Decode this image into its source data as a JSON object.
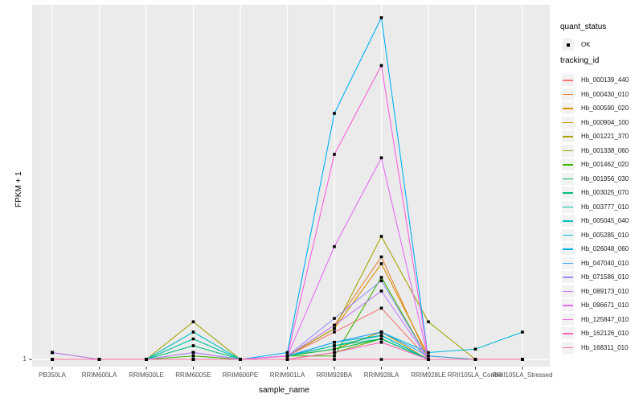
{
  "figure": {
    "background": "#ffffff",
    "panel_bg": "#ebebeb",
    "grid_color": "#ffffff",
    "axis_text_color": "#4d4d4d",
    "tick_color": "#333333"
  },
  "axes": {
    "x_title": "sample_name",
    "y_title": "FPKM + 1",
    "y_tick_label": "1"
  },
  "legend": {
    "quant_title": "quant_status",
    "quant_item_label": "OK",
    "quant_marker": "black-square-point",
    "tracking_title": "tracking_id"
  },
  "chart_data": {
    "type": "line",
    "title": "",
    "xlabel": "sample_name",
    "ylabel": "FPKM + 1",
    "y_scale": "log",
    "y_axis_labeled_ticks": [
      "1"
    ],
    "grid": "vertical white gridlines per sample + horizontal gridline at y=1 on grey panel",
    "legend_position": "right",
    "marker": {
      "shape": "square",
      "color": "#000000",
      "meaning": "quant_status = OK"
    },
    "x_categories": [
      "PB350LA",
      "RRIM600LA",
      "RRIM600LE",
      "RRIM600SE",
      "RRIM600PE",
      "RRIM901LA",
      "RRIM928BA",
      "RRIM928LA",
      "RRIM928LE",
      "RRII105LA_Control",
      "RRII105LA_Stressed"
    ],
    "value_note": "heights are relative panel heights 0-100 above the FPKM+1 = 1 baseline (only the '1' tick is labeled on the log y-axis); 100 = tallest peak (Hb_026048_060 at RRIM928LA)",
    "series": [
      {
        "name": "Hb_000139_440",
        "color": "#F8766D",
        "heights": [
          0,
          0,
          0,
          0,
          0,
          1,
          8,
          15,
          0,
          0,
          0
        ]
      },
      {
        "name": "Hb_000430_010",
        "color": "#EA8331",
        "heights": [
          0,
          0,
          0,
          0,
          0,
          1,
          10,
          30,
          0,
          0,
          0
        ]
      },
      {
        "name": "Hb_000590_020",
        "color": "#D89000",
        "heights": [
          0,
          0,
          0,
          0,
          0,
          1,
          9,
          28,
          1,
          0,
          0
        ]
      },
      {
        "name": "Hb_000904_100",
        "color": "#C09B00",
        "heights": [
          2,
          0,
          0,
          0,
          0,
          1,
          3,
          8,
          0,
          0,
          0
        ]
      },
      {
        "name": "Hb_001221_370",
        "color": "#A3A500",
        "heights": [
          2,
          0,
          0,
          11,
          0,
          1,
          9,
          36,
          11,
          0,
          0
        ]
      },
      {
        "name": "Hb_001338_060",
        "color": "#7CAE00",
        "heights": [
          0,
          0,
          0,
          0,
          0,
          0,
          2,
          6,
          0,
          0,
          0
        ]
      },
      {
        "name": "Hb_001462_020",
        "color": "#39B600",
        "heights": [
          0,
          0,
          0,
          1,
          0,
          1,
          1,
          24,
          0,
          0,
          0
        ]
      },
      {
        "name": "Hb_001956_030",
        "color": "#00BB4E",
        "heights": [
          0,
          0,
          0,
          2,
          0,
          1,
          3,
          6,
          0,
          0,
          0
        ]
      },
      {
        "name": "Hb_003025_070",
        "color": "#00BF7D",
        "heights": [
          0,
          0,
          0,
          4,
          0,
          1,
          4,
          6,
          0,
          0,
          0
        ]
      },
      {
        "name": "Hb_003777_010",
        "color": "#00C1A3",
        "heights": [
          0,
          0,
          0,
          6,
          0,
          1,
          4,
          7,
          0,
          0,
          0
        ]
      },
      {
        "name": "Hb_005045_040",
        "color": "#00BFC4",
        "heights": [
          0,
          0,
          0,
          8,
          0,
          1,
          5,
          7,
          0,
          0,
          0
        ]
      },
      {
        "name": "Hb_005285_010",
        "color": "#00BBDA",
        "heights": [
          0,
          0,
          0,
          0,
          0,
          1,
          5,
          8,
          2,
          3,
          8
        ]
      },
      {
        "name": "Hb_026048_060",
        "color": "#00B0F6",
        "heights": [
          0,
          0,
          0,
          0,
          0,
          2,
          72,
          100,
          0,
          0,
          0
        ]
      },
      {
        "name": "Hb_047040_010",
        "color": "#35A2FF",
        "heights": [
          0,
          0,
          0,
          0,
          0,
          1,
          5,
          8,
          1,
          0,
          0
        ]
      },
      {
        "name": "Hb_071586_010",
        "color": "#9590FF",
        "heights": [
          2,
          0,
          0,
          2,
          0,
          1,
          12,
          23,
          0,
          0,
          0
        ]
      },
      {
        "name": "Hb_089173_010",
        "color": "#C77CFF",
        "heights": [
          2,
          0,
          0,
          2,
          0,
          1,
          10,
          20,
          0,
          0,
          0
        ]
      },
      {
        "name": "Hb_096671_010",
        "color": "#E76BF3",
        "heights": [
          0,
          0,
          0,
          0,
          0,
          1,
          33,
          59,
          0,
          0,
          0
        ]
      },
      {
        "name": "Hb_125847_010",
        "color": "#FA62DB",
        "heights": [
          0,
          0,
          0,
          0,
          0,
          1,
          60,
          86,
          0,
          0,
          0
        ]
      },
      {
        "name": "Hb_162126_010",
        "color": "#FF62BC",
        "heights": [
          0,
          0,
          0,
          0,
          0,
          0,
          2,
          5,
          0,
          0,
          0
        ]
      },
      {
        "name": "Hb_168311_010",
        "color": "#FF6A98",
        "heights": [
          0,
          0,
          0,
          0,
          0,
          0,
          0,
          0,
          0,
          0,
          0
        ]
      }
    ]
  }
}
